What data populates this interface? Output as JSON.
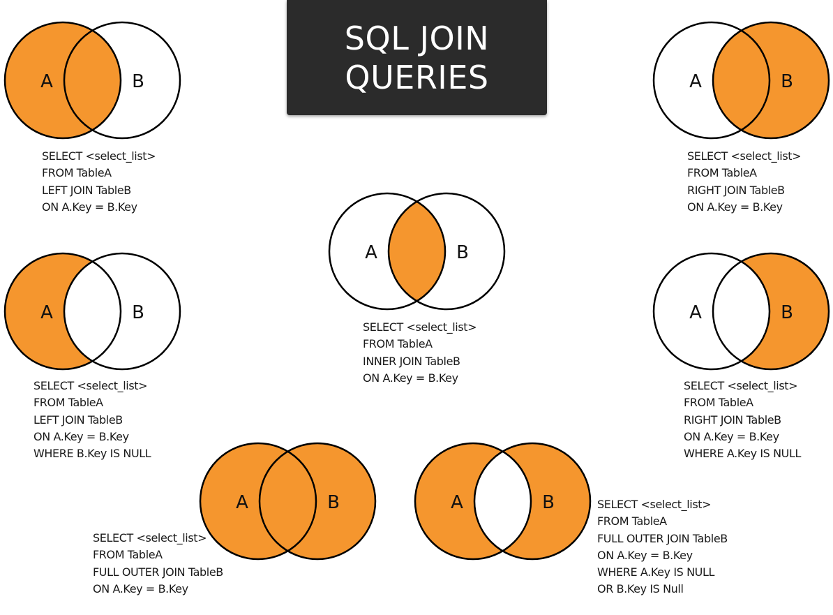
{
  "title": {
    "line1": "SQL JOIN",
    "line2": "QUERIES"
  },
  "colors": {
    "fill": "#f5962e",
    "stroke": "#000000",
    "title_bg": "#2b2b2b",
    "title_text": "#ffffff"
  },
  "set_labels": {
    "a": "A",
    "b": "B"
  },
  "joins": [
    {
      "id": "left-join",
      "regions": [
        "a_only",
        "both"
      ],
      "query": [
        "SELECT <select_list>",
        "FROM TableA",
        "LEFT JOIN TableB",
        "ON A.Key = B.Key"
      ]
    },
    {
      "id": "right-join",
      "regions": [
        "both",
        "b_only"
      ],
      "query": [
        "SELECT <select_list>",
        "FROM TableA",
        "RIGHT JOIN TableB",
        "ON A.Key = B.Key"
      ]
    },
    {
      "id": "inner-join",
      "regions": [
        "both"
      ],
      "query": [
        "SELECT <select_list>",
        "FROM TableA",
        "INNER JOIN TableB",
        "ON A.Key = B.Key"
      ]
    },
    {
      "id": "left-excluding-join",
      "regions": [
        "a_only"
      ],
      "query": [
        "SELECT <select_list>",
        "FROM TableA",
        "LEFT JOIN TableB",
        "ON A.Key = B.Key",
        "WHERE B.Key IS NULL"
      ]
    },
    {
      "id": "right-excluding-join",
      "regions": [
        "b_only"
      ],
      "query": [
        "SELECT <select_list>",
        "FROM TableA",
        "RIGHT JOIN TableB",
        "ON A.Key = B.Key",
        "WHERE A.Key IS NULL"
      ]
    },
    {
      "id": "full-outer-join",
      "regions": [
        "a_only",
        "both",
        "b_only"
      ],
      "query": [
        "SELECT <select_list>",
        "FROM TableA",
        "FULL OUTER JOIN TableB",
        "ON A.Key = B.Key"
      ]
    },
    {
      "id": "full-outer-excluding-join",
      "regions": [
        "a_only",
        "b_only"
      ],
      "query": [
        "SELECT <select_list>",
        "FROM TableA",
        "FULL OUTER JOIN TableB",
        "ON A.Key = B.Key",
        "WHERE A.Key IS NULL",
        "OR B.Key IS Null"
      ]
    }
  ]
}
